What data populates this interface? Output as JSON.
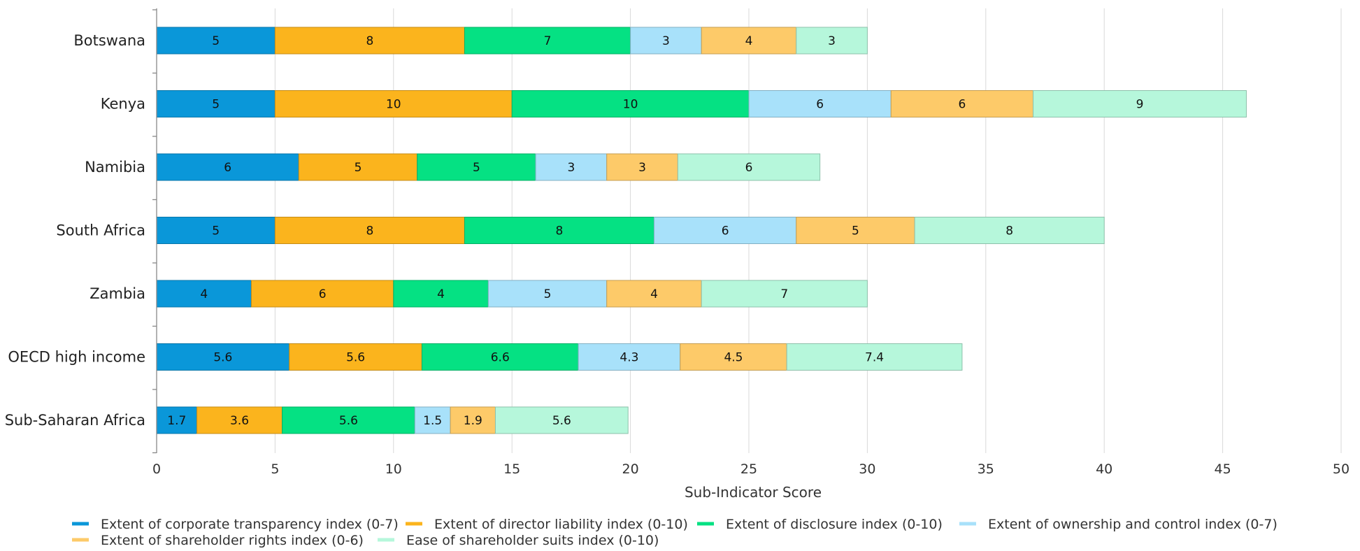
{
  "chart_data": {
    "type": "bar",
    "orientation": "horizontal",
    "stacked": true,
    "categories": [
      "Botswana",
      "Kenya",
      "Namibia",
      "South Africa",
      "Zambia",
      "OECD high income",
      "Sub-Saharan Africa"
    ],
    "series": [
      {
        "name": "Extent of corporate transparency index (0-7)",
        "color": "#0a97d9",
        "values": [
          5,
          5,
          6,
          5,
          4,
          5.6,
          1.7
        ]
      },
      {
        "name": "Extent of director liability index (0-10)",
        "color": "#fbb41d",
        "values": [
          8,
          10,
          5,
          8,
          6,
          5.6,
          3.6
        ]
      },
      {
        "name": "Extent of disclosure index (0-10)",
        "color": "#05e183",
        "values": [
          7,
          10,
          5,
          8,
          4,
          6.6,
          5.6
        ]
      },
      {
        "name": "Extent of ownership and control index (0-7)",
        "color": "#a8e1fa",
        "values": [
          3,
          6,
          3,
          6,
          5,
          4.3,
          1.5
        ]
      },
      {
        "name": "Extent of shareholder rights index (0-6)",
        "color": "#fdca69",
        "values": [
          4,
          6,
          3,
          5,
          4,
          4.5,
          1.9
        ]
      },
      {
        "name": "Ease of shareholder suits index (0-10)",
        "color": "#b6f7db",
        "values": [
          3,
          9,
          6,
          8,
          7,
          7.4,
          5.6
        ]
      }
    ],
    "xlabel": "Sub-Indicator Score",
    "xlim": [
      0,
      50
    ],
    "xticks": [
      0,
      5,
      10,
      15,
      20,
      25,
      30,
      35,
      40,
      45,
      50
    ],
    "grid": "vertical",
    "legend_position": "bottom"
  }
}
